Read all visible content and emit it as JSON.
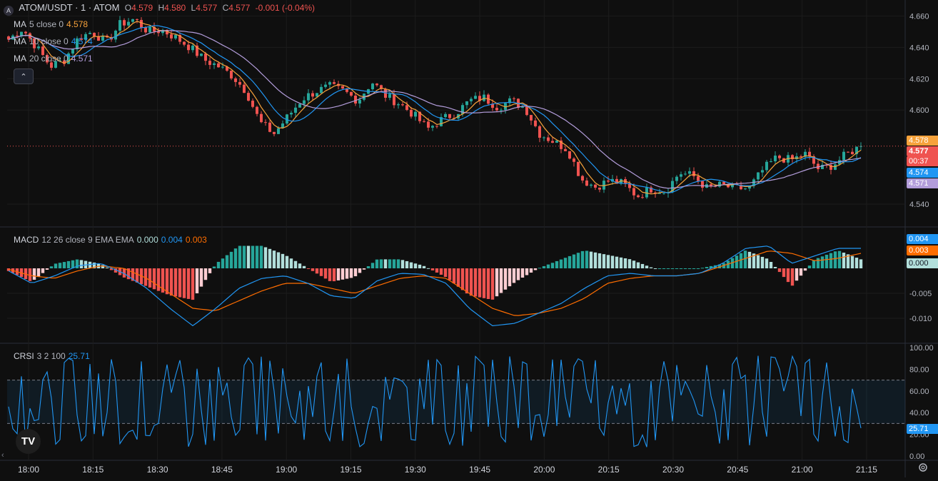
{
  "header": {
    "symbol": "ATOM/USDT · 1 · ATOM",
    "o_label": "O",
    "o_value": "4.579",
    "h_label": "H",
    "h_value": "4.580",
    "l_label": "L",
    "l_value": "4.577",
    "c_label": "C",
    "c_value": "4.577",
    "change": "-0.001 (-0.04%)"
  },
  "ma": [
    {
      "name": "MA",
      "params": "5 close 0",
      "value": "4.578",
      "color": "#f7a23b"
    },
    {
      "name": "MA",
      "params": "10 close 0",
      "value": "4.574",
      "color": "#2196f3"
    },
    {
      "name": "MA",
      "params": "20 close 0",
      "value": "4.571",
      "color": "#b39ddb"
    }
  ],
  "collapse_icon": "chevron-up-icon",
  "colors": {
    "background": "#0f0f0f",
    "up": "#26a69a",
    "down": "#ef5350",
    "ma5": "#f7a23b",
    "ma10": "#2196f3",
    "ma20": "#b39ddb",
    "macd_line": "#2196f3",
    "signal_line": "#ff6d00",
    "crsi_line": "#2196f3"
  },
  "price_axis": {
    "labels": [
      "4.660",
      "4.640",
      "4.620",
      "4.600",
      "4.540"
    ],
    "values": [
      4.66,
      4.64,
      4.62,
      4.6,
      4.54
    ]
  },
  "price_tags": {
    "ma5": "4.578",
    "last": "4.577",
    "countdown": "00:37",
    "ma10": "4.574",
    "ma20": "4.571"
  },
  "macd": {
    "name": "MACD",
    "params": "12 26 close 9 EMA EMA",
    "hist": "0.000",
    "macd": "0.004",
    "signal": "0.003",
    "axis_labels": [
      "-0.005",
      "-0.010"
    ],
    "axis_values": [
      -0.005,
      -0.01
    ],
    "tags": {
      "macd": "0.004",
      "signal": "0.003",
      "hist": "0.000"
    }
  },
  "crsi": {
    "name": "CRSI",
    "params": "3 2 100",
    "value": "25.71",
    "axis_labels": [
      "100.00",
      "80.00",
      "60.00",
      "40.00",
      "20.00",
      "0.00"
    ],
    "axis_values": [
      100,
      80,
      60,
      40,
      20,
      0
    ],
    "upper_band": 70,
    "lower_band": 30,
    "tag": "25.71"
  },
  "time_axis": [
    "18:00",
    "18:15",
    "18:30",
    "18:45",
    "19:00",
    "19:15",
    "19:30",
    "19:45",
    "20:00",
    "20:15",
    "20:30",
    "20:45",
    "21:00",
    "21:15"
  ],
  "chart_data": [
    {
      "type": "candlestick",
      "title": "ATOM/USDT · 1 · ATOM",
      "ylim": [
        4.535,
        4.663
      ],
      "series_path": [
        4.645,
        4.652,
        4.64,
        4.628,
        4.632,
        4.646,
        4.65,
        4.643,
        4.655,
        4.658,
        4.65,
        4.651,
        4.646,
        4.64,
        4.632,
        4.628,
        4.622,
        4.612,
        4.592,
        4.585,
        4.596,
        4.607,
        4.612,
        4.615,
        4.612,
        4.606,
        4.618,
        4.609,
        4.604,
        4.597,
        4.588,
        4.594,
        4.598,
        4.606,
        4.608,
        4.602,
        4.606,
        4.601,
        4.585,
        4.58,
        4.575,
        4.556,
        4.551,
        4.555,
        4.553,
        4.545,
        4.55,
        4.548,
        4.56,
        4.558,
        4.55,
        4.552,
        4.55,
        4.55,
        4.562,
        4.57,
        4.568,
        4.572,
        4.562,
        4.565,
        4.572,
        4.577
      ],
      "x_time_range": [
        "17:57",
        "21:13"
      ]
    },
    {
      "type": "line",
      "name": "MACD",
      "ylim": [
        -0.0125,
        0.0065
      ],
      "series": [
        {
          "name": "MACD",
          "path": [
            -0.0005,
            -0.003,
            -0.0015,
            0.0005,
            0.001,
            -0.001,
            -0.004,
            -0.008,
            -0.0115,
            -0.008,
            -0.004,
            -0.002,
            -0.0015,
            -0.003,
            -0.0055,
            -0.006,
            -0.0025,
            -0.001,
            -0.0012,
            -0.003,
            -0.008,
            -0.0115,
            -0.011,
            -0.009,
            -0.007,
            -0.004,
            -0.0015,
            -0.001,
            -0.0015,
            -0.0015,
            -0.001,
            0.001,
            0.004,
            0.0045,
            0.001,
            0.0025,
            0.004,
            0.004
          ]
        },
        {
          "name": "Signal",
          "path": [
            -0.0002,
            -0.0015,
            -0.002,
            -0.0005,
            0.0005,
            0.0,
            -0.002,
            -0.005,
            -0.008,
            -0.0085,
            -0.0065,
            -0.0045,
            -0.003,
            -0.003,
            -0.004,
            -0.005,
            -0.0035,
            -0.002,
            -0.0015,
            -0.002,
            -0.005,
            -0.008,
            -0.0095,
            -0.009,
            -0.008,
            -0.006,
            -0.003,
            -0.002,
            -0.0015,
            -0.0015,
            -0.001,
            0.0005,
            0.002,
            0.0035,
            0.003,
            0.0015,
            0.002,
            0.003
          ]
        }
      ]
    },
    {
      "type": "line",
      "name": "CRSI",
      "ylim": [
        0,
        100
      ],
      "bands": [
        30,
        70
      ]
    }
  ]
}
